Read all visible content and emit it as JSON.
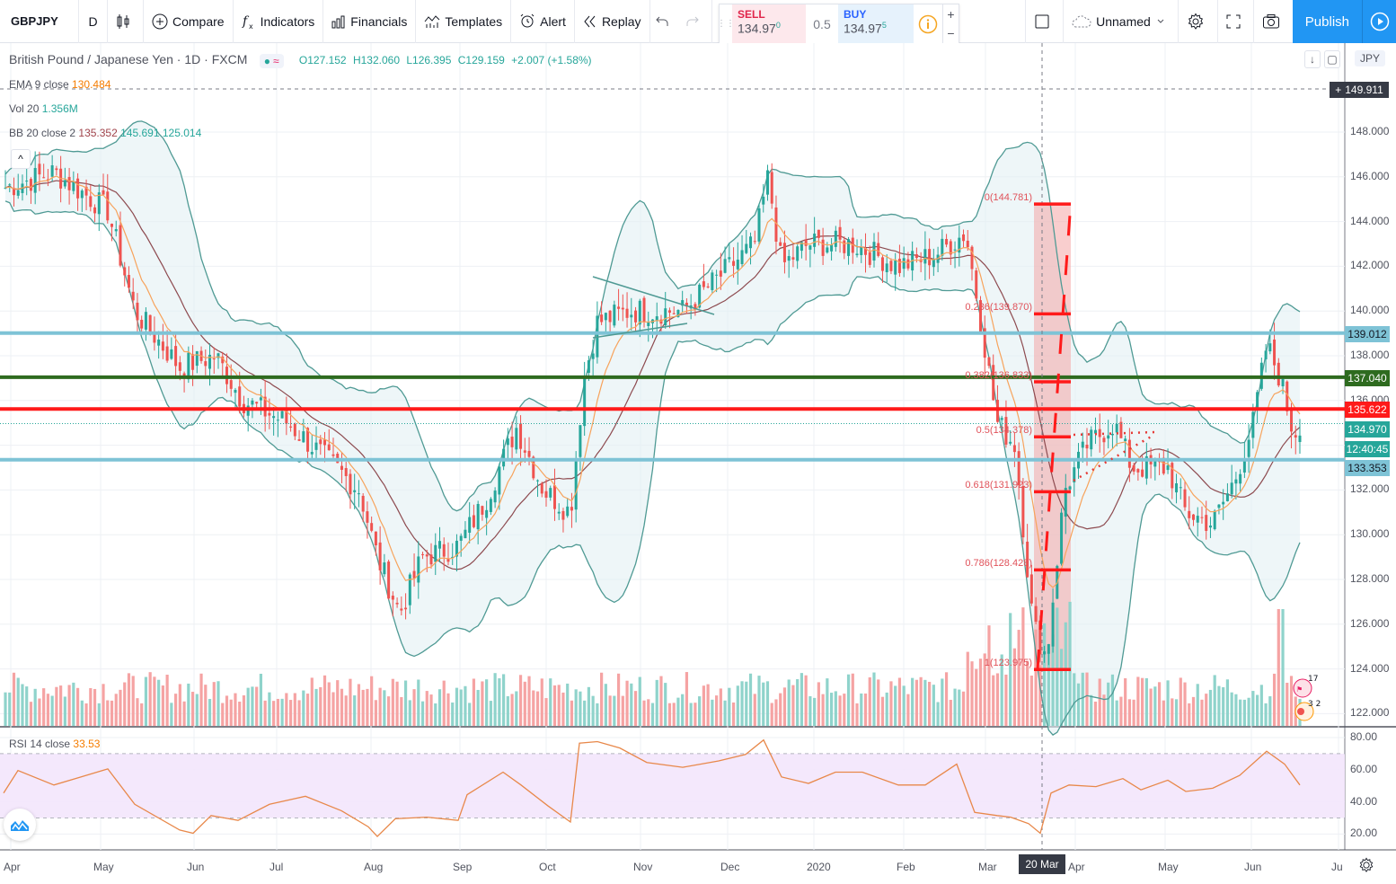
{
  "toolbar": {
    "symbol": "GBPJPY",
    "interval": "D",
    "compare_label": "Compare",
    "indicators_label": "Indicators",
    "financials_label": "Financials",
    "templates_label": "Templates",
    "alert_label": "Alert",
    "replay_label": "Replay",
    "layout_name": "Unnamed",
    "publish_label": "Publish"
  },
  "trade_panel": {
    "sell_label": "SELL",
    "sell_price": "134.97",
    "sell_price_sup": "0",
    "spread": "0.5",
    "buy_label": "BUY",
    "buy_price": "134.97",
    "buy_price_sup": "5",
    "plus": "+",
    "minus": "−"
  },
  "legend": {
    "title": "British Pound / Japanese Yen · 1D · FXCM",
    "ohlc": {
      "open": "O127.152",
      "high": "H132.060",
      "low": "L126.395",
      "close": "C129.159",
      "change": "+2.007 (+1.58%)"
    },
    "ema": {
      "label": "EMA 9 close",
      "value": "130.484"
    },
    "vol": {
      "label": "Vol 20",
      "value": "1.356M"
    },
    "bb": {
      "label": "BB 20 close 2",
      "basis": "135.352",
      "upper": "145.691",
      "lower": "125.014"
    },
    "rsi": {
      "label": "RSI 14 close",
      "value": "33.53"
    }
  },
  "price_axis": {
    "currency": "JPY",
    "ticks": [
      "148.000",
      "146.000",
      "144.000",
      "142.000",
      "140.000",
      "138.000",
      "136.000",
      "132.000",
      "130.000",
      "128.000",
      "126.000",
      "124.000",
      "122.000"
    ],
    "crosshair_price": "149.911",
    "labels": [
      {
        "name": "resistance-139",
        "value": "139.012",
        "bg": "#7ec3d6",
        "color": "#131722"
      },
      {
        "name": "level-137",
        "value": "137.040",
        "bg": "#2e6b1f",
        "color": "#ffffff"
      },
      {
        "name": "level-135",
        "value": "135.622",
        "bg": "#ff1a1a",
        "color": "#ffffff"
      },
      {
        "name": "last-price",
        "value": "134.970",
        "bg": "#26a69a",
        "color": "#ffffff"
      },
      {
        "name": "countdown",
        "value": "12:40:45",
        "bg": "#26a69a",
        "color": "#ffffff"
      },
      {
        "name": "support-133",
        "value": "133.353",
        "bg": "#7ec3d6",
        "color": "#131722"
      }
    ]
  },
  "rsi_axis": {
    "ticks": [
      "80.00",
      "60.00",
      "40.00",
      "20.00"
    ]
  },
  "time_axis": {
    "labels": [
      "Apr",
      "May",
      "Jun",
      "Jul",
      "Aug",
      "Sep",
      "Oct",
      "Nov",
      "Dec",
      "2020",
      "Feb",
      "Mar",
      "Apr",
      "May",
      "Jun",
      "Ju"
    ],
    "crosshair_date": "20 Mar '20"
  },
  "fibonacci": [
    {
      "label": "0(144.781)",
      "price": 144.781
    },
    {
      "label": "0.236(139.870)",
      "price": 139.87
    },
    {
      "label": "0.382(136.833)",
      "price": 136.833
    },
    {
      "label": "0.5(134.378)",
      "price": 134.378
    },
    {
      "label": "0.618(131.923)",
      "price": 131.923
    },
    {
      "label": "0.786(128.428)",
      "price": 128.428
    },
    {
      "label": "1(123.975)",
      "price": 123.975
    }
  ],
  "horizontal_lines": [
    {
      "price": 139.012,
      "color": "#7ec3d6"
    },
    {
      "price": 137.04,
      "color": "#2e6b1f"
    },
    {
      "price": 135.622,
      "color": "#ff1a1a"
    },
    {
      "price": 133.353,
      "color": "#7ec3d6"
    }
  ],
  "colors": {
    "up": "#26a69a",
    "down": "#ef5350",
    "ema": "#f7a35c",
    "bb_basis": "#8d4a4f",
    "bb_band": "#4f9a94",
    "rsi": "#e8884a",
    "fib": "#ff1a1a",
    "accent": "#2196f3"
  },
  "chart_data": {
    "type": "candlestick",
    "title": "British Pound / Japanese Yen · 1D · FXCM",
    "x_months": [
      "Apr",
      "May",
      "Jun",
      "Jul",
      "Aug",
      "Sep",
      "Oct",
      "Nov",
      "Dec",
      "2020",
      "Feb",
      "Mar",
      "Apr",
      "May",
      "Jun"
    ],
    "close_path_monthly": [
      145.5,
      144.5,
      138.0,
      136.0,
      132.0,
      129.5,
      131.5,
      140.0,
      142.0,
      143.0,
      142.0,
      141.0,
      133.0,
      132.5,
      136.0
    ],
    "ylim": [
      121.5,
      150.0
    ],
    "rsi_ylim": [
      10,
      85
    ],
    "rsi_bands": [
      30,
      70
    ],
    "last_close": 134.97
  }
}
